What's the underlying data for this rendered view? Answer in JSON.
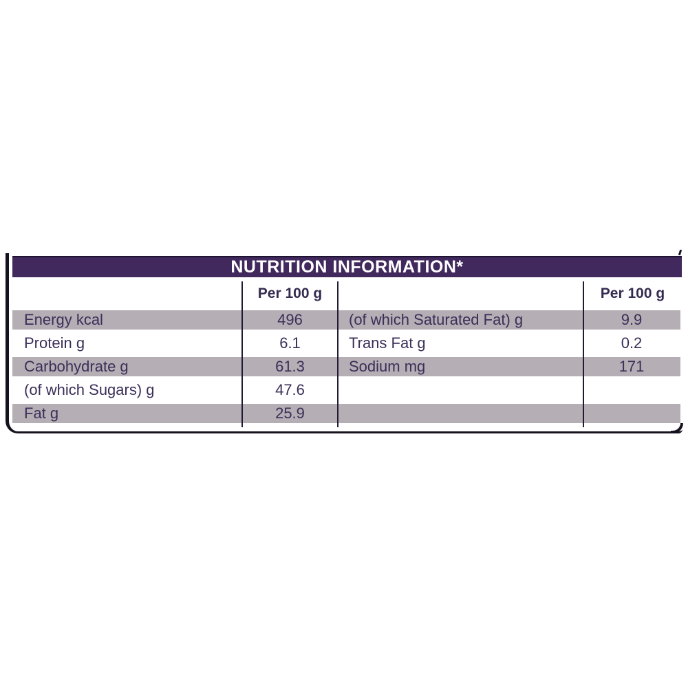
{
  "nutrition_table": {
    "title": "NUTRITION INFORMATION*",
    "left_column_header": "Per 100 g",
    "right_column_header": "Per 100 g",
    "rows": [
      {
        "left_label": "Energy kcal",
        "left_value": "496",
        "right_label": "(of which Saturated Fat) g",
        "right_value": "9.9"
      },
      {
        "left_label": "Protein g",
        "left_value": "6.1",
        "right_label": "Trans Fat g",
        "right_value": "0.2"
      },
      {
        "left_label": "Carbohydrate g",
        "left_value": "61.3",
        "right_label": "Sodium mg",
        "right_value": "171"
      },
      {
        "left_label": "(of which Sugars) g",
        "left_value": "47.6",
        "right_label": "",
        "right_value": ""
      },
      {
        "left_label": "Fat g",
        "left_value": "25.9",
        "right_label": "",
        "right_value": ""
      }
    ],
    "colors": {
      "header_background": "#41285d",
      "header_text": "#ffffff",
      "row_stripe": "#b5aeb4",
      "body_text": "#3a2f58",
      "frame_border": "#16111f"
    }
  }
}
